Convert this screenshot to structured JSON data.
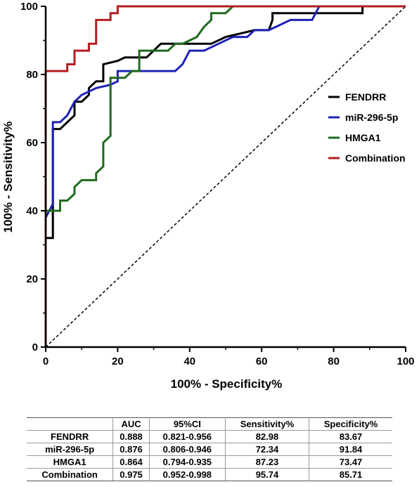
{
  "chart_data": {
    "type": "line",
    "title": "",
    "xlabel": "100% - Specificity%",
    "ylabel": "100% - Sensitivity%",
    "xlim": [
      0,
      100
    ],
    "ylim": [
      0,
      100
    ],
    "xticks": [
      "0",
      "20",
      "40",
      "60",
      "80",
      "100"
    ],
    "yticks": [
      "0",
      "20",
      "40",
      "60",
      "80",
      "100"
    ],
    "legend_position": "right",
    "reference_line": {
      "style": "dashed",
      "from": [
        0,
        0
      ],
      "to": [
        100,
        100
      ]
    },
    "series": [
      {
        "name": "FENDRR",
        "color": "#000000",
        "points": [
          [
            0,
            0
          ],
          [
            0,
            32
          ],
          [
            2,
            32
          ],
          [
            2,
            64
          ],
          [
            4,
            64
          ],
          [
            6,
            66
          ],
          [
            8,
            68
          ],
          [
            8,
            72
          ],
          [
            10,
            72
          ],
          [
            12,
            74
          ],
          [
            12,
            76
          ],
          [
            14,
            78
          ],
          [
            16,
            78
          ],
          [
            16,
            83
          ],
          [
            20,
            84
          ],
          [
            22,
            85
          ],
          [
            28,
            85
          ],
          [
            30,
            87
          ],
          [
            32,
            89
          ],
          [
            46,
            89
          ],
          [
            50,
            91
          ],
          [
            54,
            92
          ],
          [
            58,
            93
          ],
          [
            62,
            93
          ],
          [
            63,
            96
          ],
          [
            63,
            98
          ],
          [
            88,
            98
          ],
          [
            88,
            100
          ],
          [
            100,
            100
          ]
        ]
      },
      {
        "name": "miR-296-5p",
        "color": "#1f22b5",
        "points": [
          [
            0,
            0
          ],
          [
            0,
            38
          ],
          [
            2,
            42
          ],
          [
            2,
            66
          ],
          [
            4,
            66
          ],
          [
            6,
            68
          ],
          [
            8,
            72
          ],
          [
            10,
            74
          ],
          [
            12,
            75
          ],
          [
            14,
            76
          ],
          [
            18,
            77
          ],
          [
            20,
            78
          ],
          [
            20,
            81
          ],
          [
            26,
            81
          ],
          [
            28,
            81
          ],
          [
            36,
            81
          ],
          [
            38,
            83
          ],
          [
            40,
            87
          ],
          [
            44,
            87
          ],
          [
            48,
            89
          ],
          [
            52,
            91
          ],
          [
            56,
            91
          ],
          [
            58,
            93
          ],
          [
            62,
            93
          ],
          [
            64,
            94
          ],
          [
            68,
            96
          ],
          [
            74,
            96
          ],
          [
            76,
            100
          ],
          [
            100,
            100
          ]
        ]
      },
      {
        "name": "HMGA1",
        "color": "#1e6b1e",
        "points": [
          [
            0,
            0
          ],
          [
            0,
            40
          ],
          [
            4,
            40
          ],
          [
            4,
            43
          ],
          [
            6,
            43
          ],
          [
            8,
            45
          ],
          [
            8,
            47
          ],
          [
            10,
            49
          ],
          [
            14,
            49
          ],
          [
            14,
            51
          ],
          [
            16,
            53
          ],
          [
            16,
            60
          ],
          [
            18,
            62
          ],
          [
            18,
            79
          ],
          [
            22,
            79
          ],
          [
            24,
            81
          ],
          [
            26,
            81
          ],
          [
            26,
            87
          ],
          [
            30,
            87
          ],
          [
            34,
            87
          ],
          [
            36,
            89
          ],
          [
            38,
            89
          ],
          [
            40,
            90
          ],
          [
            42,
            91
          ],
          [
            44,
            94
          ],
          [
            46,
            96
          ],
          [
            46,
            98
          ],
          [
            50,
            98
          ],
          [
            52,
            100
          ],
          [
            100,
            100
          ]
        ]
      },
      {
        "name": "Combination",
        "color": "#b41e1e",
        "points": [
          [
            0,
            0
          ],
          [
            0,
            81
          ],
          [
            6,
            81
          ],
          [
            6,
            83
          ],
          [
            8,
            83
          ],
          [
            8,
            85
          ],
          [
            8,
            87
          ],
          [
            12,
            87
          ],
          [
            12,
            89
          ],
          [
            14,
            89
          ],
          [
            14,
            96
          ],
          [
            18,
            96
          ],
          [
            18,
            98
          ],
          [
            20,
            98
          ],
          [
            20,
            100
          ],
          [
            100,
            100
          ]
        ]
      }
    ],
    "table": {
      "headers": [
        "",
        "AUC",
        "95%CI",
        "Sensitivity%",
        "Specificity%"
      ],
      "rows": [
        [
          "FENDRR",
          "0.888",
          "0.821-0.956",
          "82.98",
          "83.67"
        ],
        [
          "miR-296-5p",
          "0.876",
          "0.806-0.946",
          "72.34",
          "91.84"
        ],
        [
          "HMGA1",
          "0.864",
          "0.794-0.935",
          "87.23",
          "73.47"
        ],
        [
          "Combination",
          "0.975",
          "0.952-0.998",
          "95.74",
          "85.71"
        ]
      ]
    }
  }
}
